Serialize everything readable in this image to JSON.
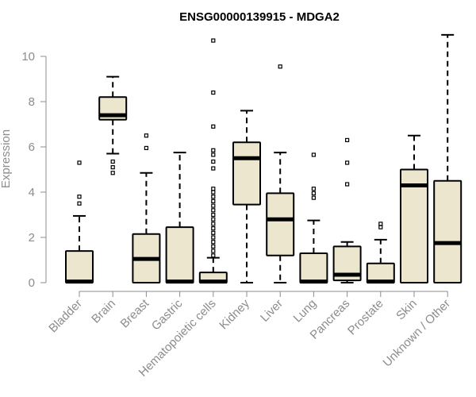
{
  "chart_data": {
    "type": "boxplot",
    "title": "ENSG00000139915 - MDGA2",
    "ylabel": "Expression",
    "xlabel": "",
    "ylim": [
      0,
      11
    ],
    "yticks": [
      0,
      2,
      4,
      6,
      8,
      10
    ],
    "box_fill": "#ede6cf",
    "grid": false,
    "categories": [
      "Bladder",
      "Brain",
      "Breast",
      "Gastric",
      "Hematopoietic cells",
      "Kidney",
      "Liver",
      "Lung",
      "Pancreas",
      "Prostate",
      "Skin",
      "Unknown / Other"
    ],
    "boxes": [
      {
        "min": 0,
        "q1": 0,
        "median": 0.05,
        "q3": 1.4,
        "max": 2.95,
        "outliers": [
          3.5,
          3.8,
          5.3
        ]
      },
      {
        "min": 5.7,
        "q1": 7.2,
        "median": 7.4,
        "q3": 8.2,
        "max": 9.1,
        "outliers": [
          4.85,
          5.1,
          5.35
        ]
      },
      {
        "min": 0,
        "q1": 0,
        "median": 1.05,
        "q3": 2.15,
        "max": 4.85,
        "outliers": [
          5.95,
          6.5
        ]
      },
      {
        "min": 0,
        "q1": 0,
        "median": 0.05,
        "q3": 2.45,
        "max": 5.75,
        "outliers": []
      },
      {
        "min": 0,
        "q1": 0,
        "median": 0.05,
        "q3": 0.45,
        "max": 1.1,
        "outliers": [
          1.2,
          1.4,
          1.6,
          1.8,
          2.0,
          2.2,
          2.4,
          2.6,
          2.8,
          3.0,
          3.2,
          3.4,
          3.6,
          3.8,
          4.0,
          4.15,
          5.05,
          5.35,
          5.65,
          5.85,
          6.9,
          8.4,
          10.7
        ]
      },
      {
        "min": 0,
        "q1": 3.45,
        "median": 5.5,
        "q3": 6.2,
        "max": 7.6,
        "outliers": []
      },
      {
        "min": 0,
        "q1": 1.2,
        "median": 2.8,
        "q3": 3.95,
        "max": 5.75,
        "outliers": [
          9.55
        ]
      },
      {
        "min": 0,
        "q1": 0,
        "median": 0.05,
        "q3": 1.3,
        "max": 2.75,
        "outliers": [
          3.75,
          3.95,
          4.15,
          5.65
        ]
      },
      {
        "min": 0,
        "q1": 0.1,
        "median": 0.35,
        "q3": 1.6,
        "max": 1.8,
        "outliers": [
          4.35,
          5.3,
          6.3
        ]
      },
      {
        "min": 0,
        "q1": 0,
        "median": 0.05,
        "q3": 0.85,
        "max": 1.9,
        "outliers": [
          2.45,
          2.6
        ]
      },
      {
        "min": 0,
        "q1": 0,
        "median": 4.3,
        "q3": 5.0,
        "max": 6.5,
        "outliers": []
      },
      {
        "min": 0,
        "q1": 0,
        "median": 1.75,
        "q3": 4.5,
        "max": 10.95,
        "outliers": []
      }
    ]
  }
}
